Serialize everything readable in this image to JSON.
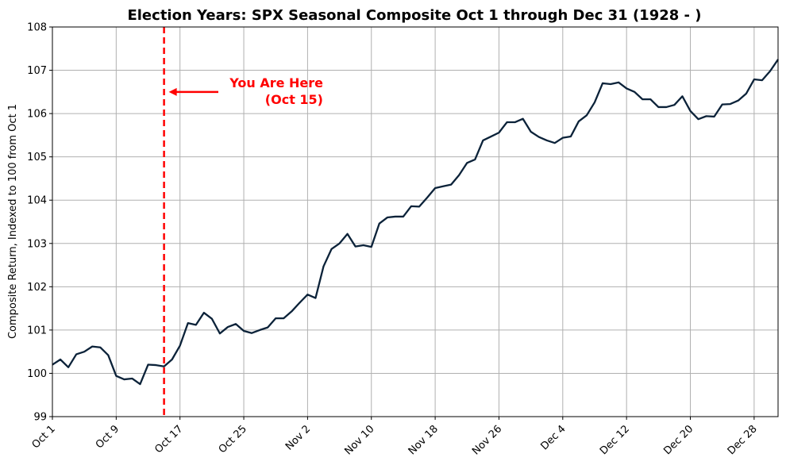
{
  "chart_data": {
    "type": "line",
    "title": "Election Years: SPX Seasonal Composite Oct 1 through Dec 31 (1928 - )",
    "ylabel": "Composite Return, Indexed to 100 from Oct 1",
    "xlabel": "",
    "ylim": [
      99,
      108
    ],
    "yticks": [
      "99",
      "100",
      "101",
      "102",
      "103",
      "104",
      "105",
      "106",
      "107",
      "108"
    ],
    "xticks": [
      {
        "day": 1,
        "label": "Oct 1"
      },
      {
        "day": 9,
        "label": "Oct 9"
      },
      {
        "day": 17,
        "label": "Oct 17"
      },
      {
        "day": 25,
        "label": "Oct 25"
      },
      {
        "day": 33,
        "label": "Nov 2"
      },
      {
        "day": 41,
        "label": "Nov 10"
      },
      {
        "day": 49,
        "label": "Nov 18"
      },
      {
        "day": 57,
        "label": "Nov 26"
      },
      {
        "day": 65,
        "label": "Dec 4"
      },
      {
        "day": 73,
        "label": "Dec 12"
      },
      {
        "day": 81,
        "label": "Dec 20"
      },
      {
        "day": 89,
        "label": "Dec 28"
      }
    ],
    "xlim": [
      1,
      92
    ],
    "grid": true,
    "line_color": "#0b2239",
    "series": [
      {
        "x": [
          1,
          2,
          3,
          4,
          5,
          6,
          7,
          8,
          9,
          10,
          11,
          12,
          13,
          14,
          15,
          16,
          17,
          18,
          19,
          20,
          21,
          22,
          23,
          24,
          25,
          26,
          27,
          28,
          29,
          30,
          31,
          32,
          33,
          34,
          35,
          36,
          37,
          38,
          39,
          40,
          41,
          42,
          43,
          44,
          45,
          46,
          47,
          48,
          49,
          50,
          51,
          52,
          53,
          54,
          55,
          56,
          57,
          58,
          59,
          60,
          61,
          62,
          63,
          64,
          65,
          66,
          67,
          68,
          69,
          70,
          71,
          72,
          73,
          74,
          75,
          76,
          77,
          78,
          79,
          80,
          81,
          82,
          83,
          84,
          85,
          86,
          87,
          88,
          89,
          90,
          91,
          92
        ],
        "values": [
          100.2,
          100.32,
          100.14,
          100.44,
          100.5,
          100.62,
          100.6,
          100.42,
          99.94,
          99.86,
          99.88,
          99.75,
          100.2,
          100.19,
          100.16,
          100.32,
          100.64,
          101.16,
          101.12,
          101.4,
          101.26,
          100.92,
          101.07,
          101.14,
          100.98,
          100.93,
          101.0,
          101.06,
          101.27,
          101.27,
          101.43,
          101.63,
          101.82,
          101.74,
          102.47,
          102.87,
          103.0,
          103.22,
          102.93,
          102.96,
          102.92,
          103.46,
          103.6,
          103.62,
          103.62,
          103.86,
          103.85,
          104.06,
          104.28,
          104.32,
          104.36,
          104.58,
          104.86,
          104.94,
          105.38,
          105.47,
          105.56,
          105.8,
          105.8,
          105.88,
          105.58,
          105.46,
          105.38,
          105.32,
          105.44,
          105.47,
          105.82,
          105.96,
          106.26,
          106.7,
          106.68,
          106.72,
          106.58,
          106.5,
          106.33,
          106.33,
          106.15,
          106.15,
          106.2,
          106.4,
          106.06,
          105.87,
          105.94,
          105.93,
          106.21,
          106.22,
          106.3,
          106.46,
          106.79,
          106.77,
          106.98,
          107.25
        ]
      }
    ],
    "marker": {
      "day": 15,
      "color": "#ff0000",
      "text_line1": "You Are Here",
      "text_line2": "(Oct 15)",
      "arrow_y": 106.5
    }
  }
}
